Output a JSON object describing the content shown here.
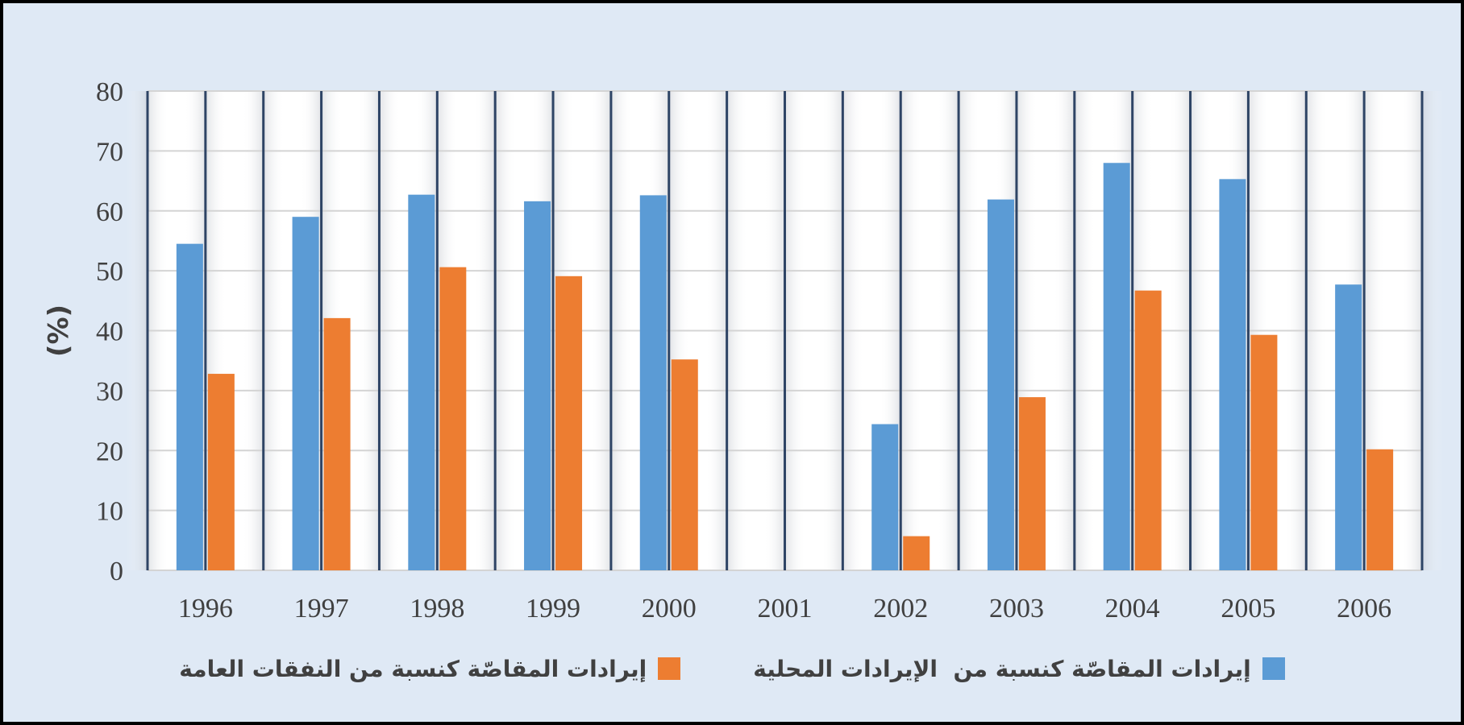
{
  "chart_data": {
    "type": "bar",
    "categories": [
      "1996",
      "1997",
      "1998",
      "1999",
      "2000",
      "2001",
      "2002",
      "2003",
      "2004",
      "2005",
      "2006"
    ],
    "series": [
      {
        "name": "إيرادات المقاصّة كنسبة من  الإيرادات المحلية",
        "color": "#5b9bd5",
        "values": [
          54.5,
          59,
          62.7,
          61.6,
          62.6,
          0,
          24.4,
          61.9,
          68,
          65.3,
          47.7
        ]
      },
      {
        "name": "إيرادات المقاصّة كنسبة من النفقات العامة",
        "color": "#ed7d31",
        "values": [
          32.8,
          42.1,
          50.6,
          49.1,
          35.2,
          0,
          5.7,
          28.9,
          46.7,
          39.3,
          20.2
        ]
      }
    ],
    "yticks": [
      "0",
      "10",
      "20",
      "30",
      "40",
      "50",
      "60",
      "70",
      "80"
    ],
    "ylabel": "(%)",
    "ylim": [
      0,
      80
    ],
    "grid": true,
    "legend_position": "bottom"
  }
}
